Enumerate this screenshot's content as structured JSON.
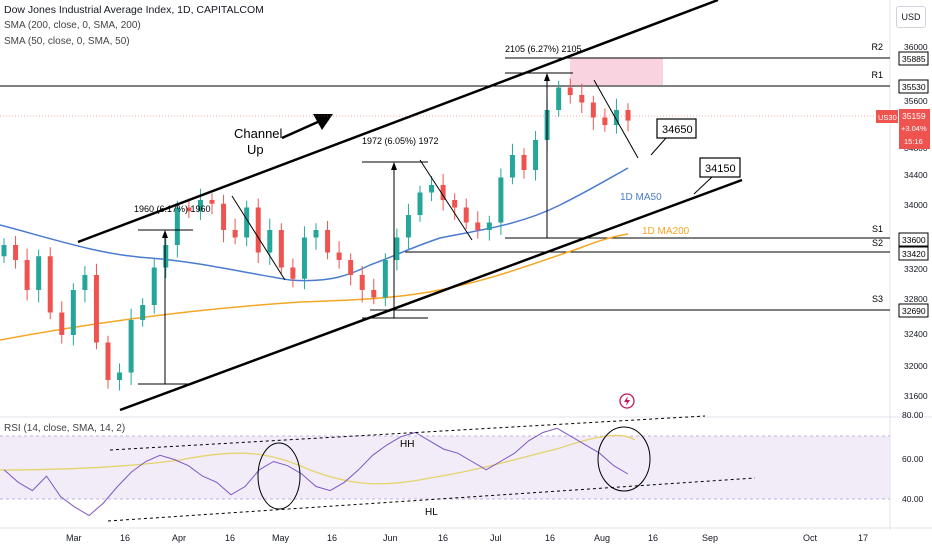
{
  "header": {
    "title": "Dow Jones Industrial Average Index, 1D, CAPITALCOM",
    "indicator_1": "SMA (200, close, 0, SMA, 200)",
    "indicator_2": "SMA (50, close, 0, SMA, 50)",
    "currency_button": "USD"
  },
  "rsi_header": "RSI (14, close, SMA, 14, 2)",
  "price_axis": {
    "ticks": [
      "36000",
      "35600",
      "34800",
      "34400",
      "34000",
      "33200",
      "32800",
      "32400",
      "32000",
      "31600"
    ],
    "levels": [
      {
        "name": "R2",
        "value": "35885"
      },
      {
        "name": "R1",
        "value": "35530"
      },
      {
        "name": "S1",
        "value": "33600"
      },
      {
        "name": "S2",
        "value": "33420"
      },
      {
        "name": "S3",
        "value": "32690"
      }
    ],
    "current": {
      "symbol": "US30",
      "price": "35159",
      "change": "+3.04%",
      "countdown": "15:16"
    }
  },
  "rsi_axis": {
    "ticks": [
      "80.00",
      "60.00",
      "40.00"
    ]
  },
  "time_axis": {
    "labels": [
      "Mar",
      "16",
      "Apr",
      "16",
      "May",
      "16",
      "Jun",
      "16",
      "Jul",
      "16",
      "Aug",
      "16",
      "Sep",
      "Oct",
      "17"
    ]
  },
  "annotations": {
    "channel": [
      "Channel",
      "Up"
    ],
    "target_1": "34650",
    "target_2": "34150",
    "ma50_label": "1D MA50",
    "ma200_label": "1D MA200",
    "measure_1": "1960 (6.17%) 1960",
    "measure_2": "1972 (6.05%) 1972",
    "measure_3": "2105 (6.27%) 2105",
    "rsi_hh": "HH",
    "rsi_hl": "HL"
  },
  "chart_data": {
    "type": "candlestick",
    "title": "Dow Jones Industrial Average Index, 1D, CAPITALCOM",
    "y_range": [
      31300,
      36500
    ],
    "rsi_range": [
      30,
      82
    ],
    "horizontal_levels": [
      35885,
      35530,
      33600,
      33420,
      32690
    ],
    "close_path": [
      33500,
      33300,
      32900,
      33350,
      32600,
      32300,
      32900,
      33100,
      32200,
      31700,
      31800,
      32500,
      32700,
      33200,
      33500,
      34000,
      33950,
      34100,
      34050,
      33700,
      33600,
      34000,
      33400,
      33700,
      33200,
      33050,
      33600,
      33700,
      33400,
      33300,
      33100,
      32900,
      32800,
      33300,
      33600,
      33900,
      34200,
      34300,
      34100,
      34000,
      33800,
      33700,
      33800,
      34400,
      34700,
      34500,
      34900,
      35300,
      35600,
      35500,
      35400,
      35200,
      35100,
      35300,
      35159
    ],
    "rsi_path": [
      58,
      52,
      48,
      55,
      45,
      40,
      36,
      42,
      50,
      57,
      62,
      65,
      63,
      60,
      55,
      52,
      46,
      50,
      58,
      62,
      60,
      56,
      50,
      48,
      52,
      58,
      65,
      70,
      74,
      76,
      72,
      68,
      66,
      62,
      58,
      62,
      66,
      72,
      76,
      78,
      74,
      70,
      66,
      60,
      56
    ]
  }
}
